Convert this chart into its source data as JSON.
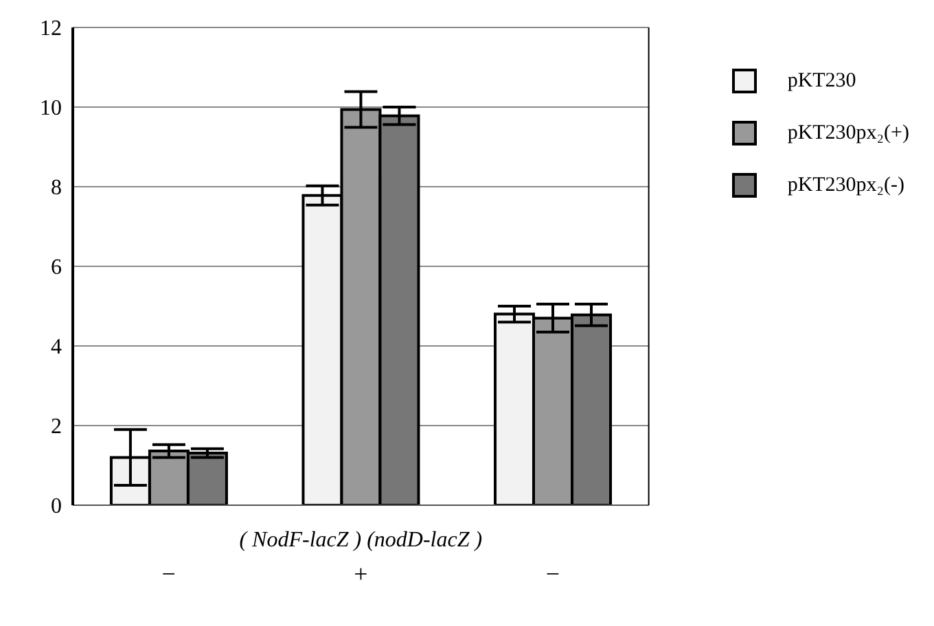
{
  "chart_data": {
    "type": "bar",
    "xlabel": "( NodF-lacZ ) (nodD-lacZ )",
    "categories": [
      "−",
      "+",
      "−"
    ],
    "series": [
      {
        "name": "pKT230",
        "color": "#f2f2f2",
        "values": [
          1.2,
          7.78,
          4.8
        ],
        "errors": [
          0.7,
          0.24,
          0.2
        ]
      },
      {
        "name": "pKT230px₂(+)",
        "color": "#999999",
        "values": [
          1.36,
          9.94,
          4.7
        ],
        "errors": [
          0.16,
          0.45,
          0.35
        ]
      },
      {
        "name": "pKT230px₂(-)",
        "color": "#777777",
        "values": [
          1.31,
          9.78,
          4.78
        ],
        "errors": [
          0.11,
          0.22,
          0.27
        ]
      }
    ],
    "ylim": [
      0,
      12
    ],
    "yticks": [
      0,
      2,
      4,
      6,
      8,
      10,
      12
    ],
    "grid": "y",
    "legend": "right"
  }
}
